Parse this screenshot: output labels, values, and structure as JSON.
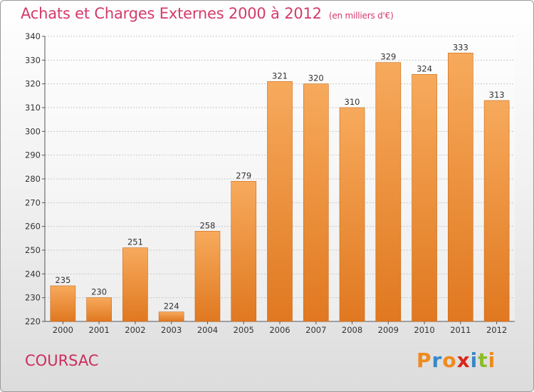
{
  "title": "Achats et Charges Externes 2000 à 2012",
  "unit": "(en milliers d'€)",
  "city": "COURSAC",
  "logo": {
    "text": "Proxiti",
    "colors": [
      "#f08a1c",
      "#3a88c8",
      "#f08a1c",
      "#d9261c",
      "#3a88c8",
      "#8cbc2a",
      "#f08a1c"
    ]
  },
  "colors": {
    "title": "#d43a6a",
    "bar_top": "#f7aa5c",
    "bar_bottom": "#e07820",
    "bar_edge": "#c96a18"
  },
  "chart_data": {
    "type": "bar",
    "categories": [
      "2000",
      "2001",
      "2002",
      "2003",
      "2004",
      "2005",
      "2006",
      "2007",
      "2008",
      "2009",
      "2010",
      "2011",
      "2012"
    ],
    "values": [
      235,
      230,
      251,
      224,
      258,
      279,
      321,
      320,
      310,
      329,
      324,
      333,
      313
    ],
    "ylim": [
      220,
      340
    ],
    "yticks": [
      220,
      230,
      240,
      250,
      260,
      270,
      280,
      290,
      300,
      310,
      320,
      330,
      340
    ],
    "grid": true,
    "data_labels": true
  }
}
